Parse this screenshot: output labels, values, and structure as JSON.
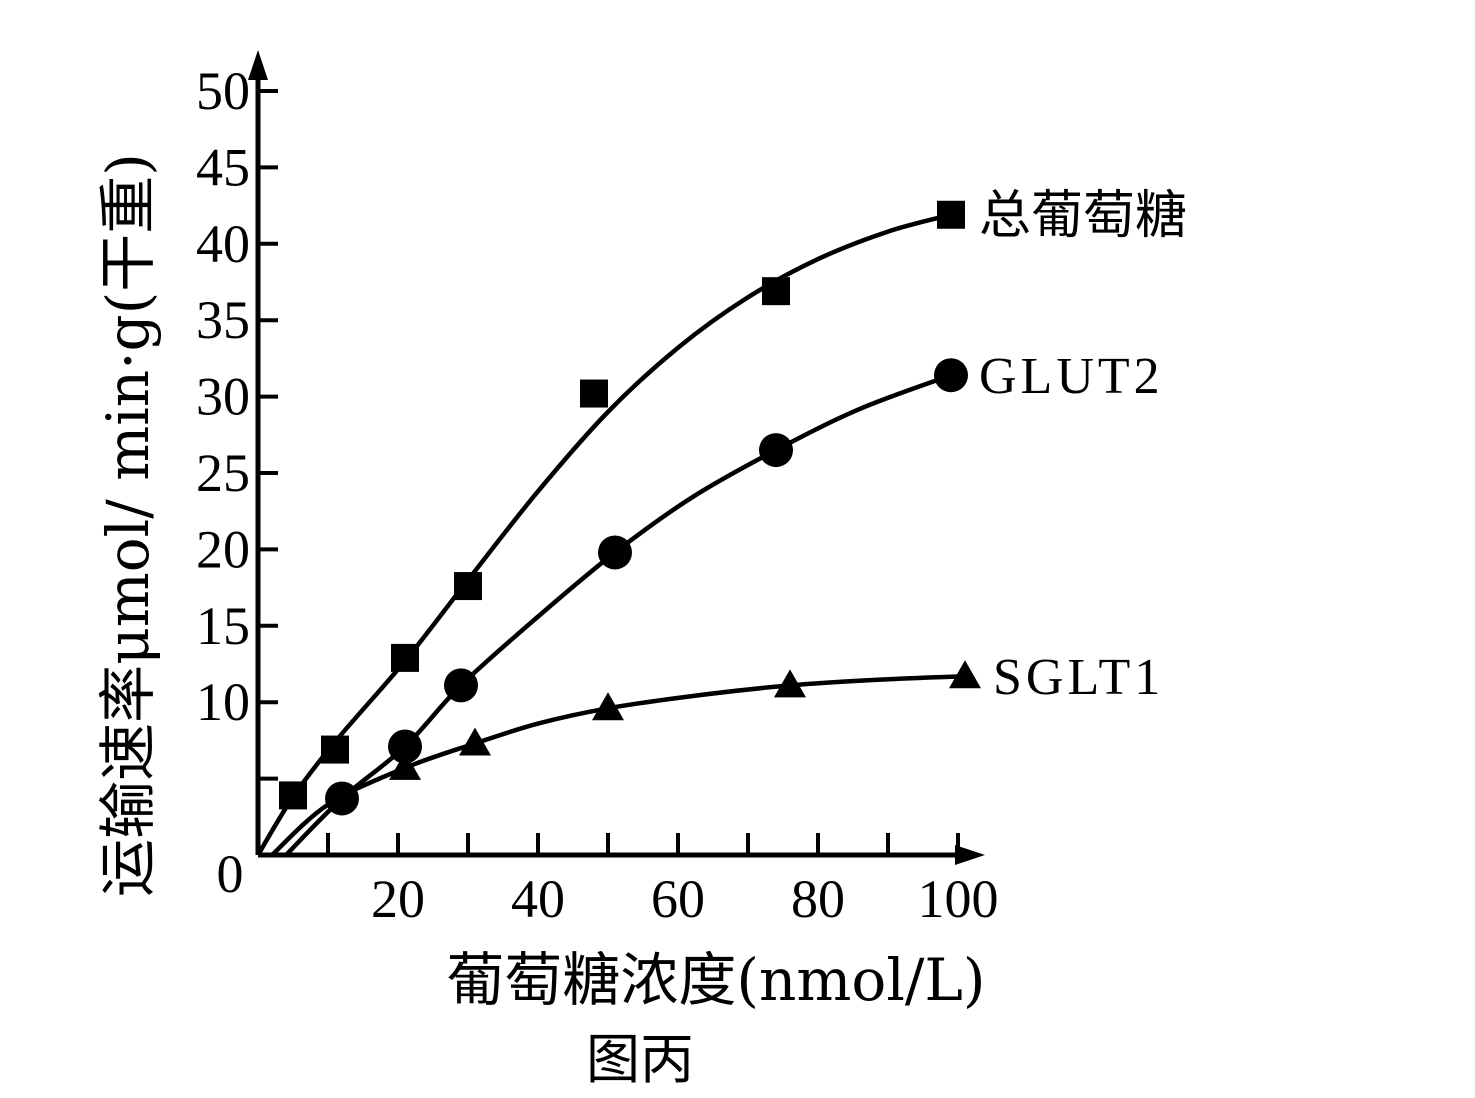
{
  "chart_data": {
    "type": "line",
    "title": "",
    "caption": "图丙",
    "xlabel": "葡萄糖浓度(nmol/L)",
    "ylabel": "运输速率μmol/ min·g(干重)",
    "xlim": [
      0,
      100
    ],
    "ylim": [
      0,
      50
    ],
    "x_ticks": [
      20,
      40,
      60,
      80,
      100
    ],
    "y_ticks": [
      10,
      15,
      20,
      25,
      30,
      35,
      40,
      45,
      50
    ],
    "origin_label": "0",
    "grid": false,
    "legend": "inline-right",
    "series": [
      {
        "name": "总葡萄糖",
        "marker": "square",
        "points": [
          [
            5,
            3.9
          ],
          [
            11,
            6.9
          ],
          [
            21,
            12.9
          ],
          [
            30,
            17.6
          ],
          [
            48,
            30.2
          ],
          [
            74,
            36.9
          ],
          [
            99,
            41.9
          ]
        ],
        "curve": [
          [
            0,
            0
          ],
          [
            5,
            3.8
          ],
          [
            11,
            7.4
          ],
          [
            21,
            12.7
          ],
          [
            30,
            18
          ],
          [
            40,
            23.8
          ],
          [
            50,
            29
          ],
          [
            60,
            33.2
          ],
          [
            70,
            36.5
          ],
          [
            80,
            39
          ],
          [
            90,
            40.8
          ],
          [
            99,
            41.9
          ]
        ]
      },
      {
        "name": "GLUT2",
        "marker": "circle",
        "points": [
          [
            12,
            3.7
          ],
          [
            21,
            7.1
          ],
          [
            29,
            11.1
          ],
          [
            51,
            19.8
          ],
          [
            74,
            26.5
          ],
          [
            99,
            31.4
          ]
        ],
        "curve": [
          [
            4,
            0
          ],
          [
            12,
            3.7
          ],
          [
            21,
            7.1
          ],
          [
            29,
            11.1
          ],
          [
            40,
            15.6
          ],
          [
            51,
            19.8
          ],
          [
            62,
            23.4
          ],
          [
            74,
            26.5
          ],
          [
            86,
            29.2
          ],
          [
            99,
            31.4
          ]
        ]
      },
      {
        "name": "SGLT1",
        "marker": "triangle",
        "points": [
          [
            21,
            5.7
          ],
          [
            31,
            7.3
          ],
          [
            50,
            9.6
          ],
          [
            76,
            11.1
          ],
          [
            101,
            11.7
          ]
        ],
        "curve": [
          [
            2,
            0
          ],
          [
            10,
            3.3
          ],
          [
            21,
            5.7
          ],
          [
            31,
            7.3
          ],
          [
            40,
            8.6
          ],
          [
            50,
            9.6
          ],
          [
            62,
            10.4
          ],
          [
            76,
            11.1
          ],
          [
            90,
            11.5
          ],
          [
            101,
            11.7
          ]
        ]
      }
    ]
  }
}
